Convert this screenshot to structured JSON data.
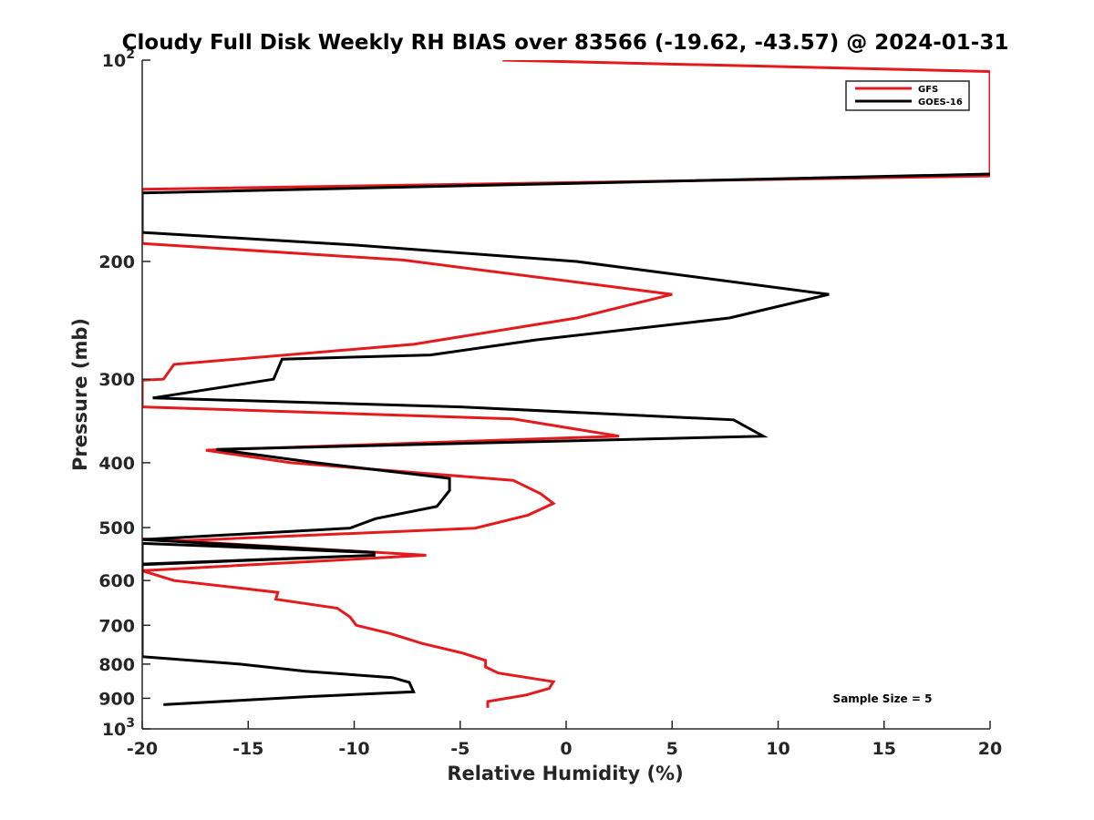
{
  "chart_data": {
    "type": "line",
    "title": "Cloudy Full Disk Weekly RH BIAS over 83566 (-19.62, -43.57) @ 2024-01-31",
    "xlabel": "Relative Humidity (%)",
    "ylabel": "Pressure (mb)",
    "xlim": [
      -20,
      20
    ],
    "ylim": [
      100,
      1000
    ],
    "y_scale": "log",
    "y_reversed": true,
    "xticks": [
      -20,
      -15,
      -10,
      -5,
      0,
      5,
      10,
      15,
      20
    ],
    "x_tick_labels": [
      "-20",
      "-15",
      "-10",
      "-5",
      "0",
      "5",
      "10",
      "15",
      "20"
    ],
    "yticks": [
      {
        "value": 100,
        "base": "10",
        "exp": "2"
      },
      {
        "value": 200,
        "label": "200"
      },
      {
        "value": 300,
        "label": "300"
      },
      {
        "value": 400,
        "label": "400"
      },
      {
        "value": 500,
        "label": "500"
      },
      {
        "value": 600,
        "label": "600"
      },
      {
        "value": 700,
        "label": "700"
      },
      {
        "value": 800,
        "label": "800"
      },
      {
        "value": 900,
        "label": "900"
      },
      {
        "value": 1000,
        "base": "10",
        "exp": "3"
      }
    ],
    "grid": false,
    "legend_position": "top-right",
    "annotation": "Sample Size = 5",
    "series": [
      {
        "name": "GFS",
        "color": "#e41a1c",
        "points": [
          [
            -3,
            100
          ],
          [
            20,
            104
          ],
          [
            20,
            149
          ],
          [
            -20,
            156
          ],
          [
            -20,
            188
          ],
          [
            -7.7,
            199
          ],
          [
            5,
            224
          ],
          [
            0.5,
            243
          ],
          [
            -7.2,
            266
          ],
          [
            -18.5,
            285
          ],
          [
            -19,
            300
          ],
          [
            -20,
            301
          ],
          [
            -20,
            330
          ],
          [
            -2.5,
            344
          ],
          [
            2.5,
            365
          ],
          [
            -17,
            383
          ],
          [
            -13,
            400
          ],
          [
            -2.5,
            425
          ],
          [
            -1.2,
            445
          ],
          [
            -0.6,
            460
          ],
          [
            -1.8,
            479
          ],
          [
            -4.3,
            501
          ],
          [
            -18,
            523
          ],
          [
            -20,
            520
          ],
          [
            -6.6,
            550
          ],
          [
            -20,
            580
          ],
          [
            -18.5,
            600
          ],
          [
            -13.6,
            625
          ],
          [
            -13.7,
            640
          ],
          [
            -10.8,
            660
          ],
          [
            -10.2,
            680
          ],
          [
            -9.9,
            700
          ],
          [
            -8.3,
            720
          ],
          [
            -6.8,
            745
          ],
          [
            -4.9,
            770
          ],
          [
            -3.8,
            790
          ],
          [
            -3.8,
            808
          ],
          [
            -3.2,
            825
          ],
          [
            -0.6,
            850
          ],
          [
            -0.8,
            870
          ],
          [
            -1.9,
            890
          ],
          [
            -3.7,
            910
          ],
          [
            -3.7,
            930
          ]
        ]
      },
      {
        "name": "GOES-16",
        "color": "#000000",
        "points": [
          [
            20,
            148
          ],
          [
            -20,
            158
          ],
          [
            -20,
            181
          ],
          [
            -10,
            189
          ],
          [
            0.5,
            200
          ],
          [
            12.4,
            224
          ],
          [
            7.7,
            243
          ],
          [
            -1.4,
            262
          ],
          [
            -6.4,
            276
          ],
          [
            -13.4,
            280
          ],
          [
            -13.8,
            300
          ],
          [
            -19.5,
            320
          ],
          [
            -5,
            330
          ],
          [
            7.9,
            345
          ],
          [
            9.3,
            365
          ],
          [
            -16.5,
            382
          ],
          [
            -11.8,
            400
          ],
          [
            -5.5,
            422
          ],
          [
            -5.5,
            440
          ],
          [
            -6.1,
            465
          ],
          [
            -9,
            485
          ],
          [
            -10.2,
            501
          ],
          [
            -20,
            521
          ],
          [
            -9,
            545
          ],
          [
            -20,
            528
          ],
          [
            -20,
            568
          ],
          [
            -9,
            550
          ],
          [
            -20,
            567
          ],
          [
            -20,
            780
          ],
          [
            -15.4,
            800
          ],
          [
            -12.3,
            820
          ],
          [
            -8.2,
            838
          ],
          [
            -7.4,
            852
          ],
          [
            -7.2,
            880
          ],
          [
            -12.2,
            895
          ],
          [
            -19,
            920
          ]
        ]
      }
    ]
  }
}
